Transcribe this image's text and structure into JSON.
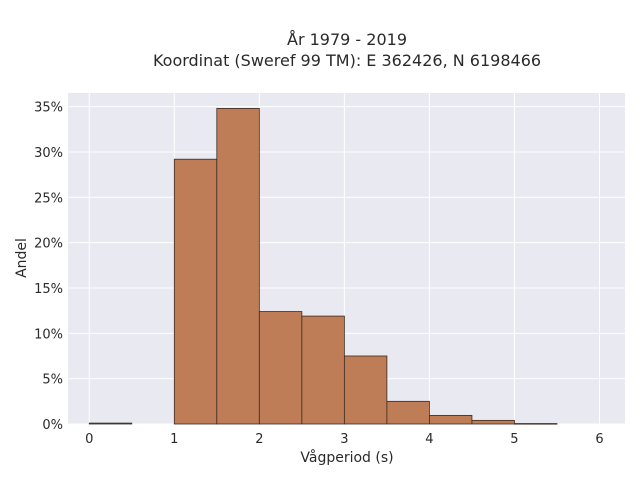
{
  "chart_data": {
    "type": "bar",
    "title_line1": "År 1979 - 2019",
    "title_line2": "Koordinat (Sweref 99 TM): E 362426, N 6198466",
    "xlabel": "Vågperiod (s)",
    "ylabel": "Andel",
    "bins": [
      {
        "x0": 0.0,
        "x1": 0.5,
        "value": 0.1
      },
      {
        "x0": 0.5,
        "x1": 1.0,
        "value": 0.0
      },
      {
        "x0": 1.0,
        "x1": 1.5,
        "value": 29.2
      },
      {
        "x0": 1.5,
        "x1": 2.0,
        "value": 34.8
      },
      {
        "x0": 2.0,
        "x1": 2.5,
        "value": 12.4
      },
      {
        "x0": 2.5,
        "x1": 3.0,
        "value": 11.9
      },
      {
        "x0": 3.0,
        "x1": 3.5,
        "value": 7.5
      },
      {
        "x0": 3.5,
        "x1": 4.0,
        "value": 2.5
      },
      {
        "x0": 4.0,
        "x1": 4.5,
        "value": 0.95
      },
      {
        "x0": 4.5,
        "x1": 5.0,
        "value": 0.4
      },
      {
        "x0": 5.0,
        "x1": 5.5,
        "value": 0.05
      }
    ],
    "xlim": [
      -0.25,
      6.3
    ],
    "ylim": [
      0,
      36.5
    ],
    "xticks": [
      {
        "value": 0,
        "label": "0"
      },
      {
        "value": 1,
        "label": "1"
      },
      {
        "value": 2,
        "label": "2"
      },
      {
        "value": 3,
        "label": "3"
      },
      {
        "value": 4,
        "label": "4"
      },
      {
        "value": 5,
        "label": "5"
      },
      {
        "value": 6,
        "label": "6"
      }
    ],
    "yticks": [
      {
        "value": 0,
        "label": "0%"
      },
      {
        "value": 5,
        "label": "5%"
      },
      {
        "value": 10,
        "label": "10%"
      },
      {
        "value": 15,
        "label": "15%"
      },
      {
        "value": 20,
        "label": "20%"
      },
      {
        "value": 25,
        "label": "25%"
      },
      {
        "value": 30,
        "label": "30%"
      },
      {
        "value": 35,
        "label": "35%"
      }
    ],
    "grid": true,
    "colors": {
      "bar_fill": "#bf7d57",
      "bar_stroke": "#3a2a20",
      "plot_bg": "#e9e9f1",
      "grid": "#ffffff"
    }
  }
}
